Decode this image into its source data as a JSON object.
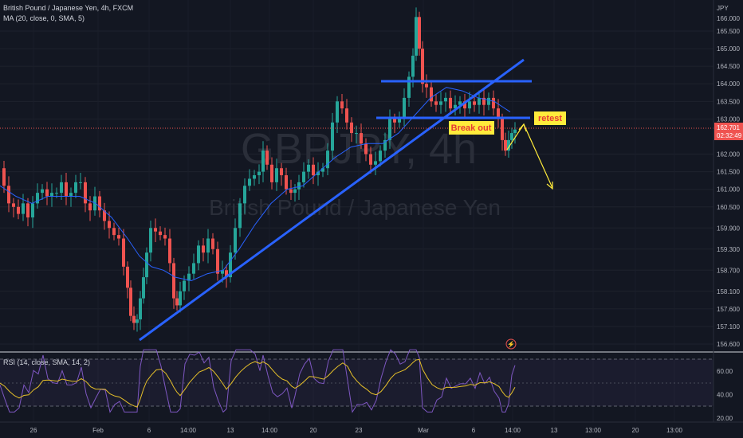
{
  "chart_data": {
    "type": "candlestick",
    "title": "British Pound / Japanese Yen, 4h, FXCM",
    "indicator_ma": "MA (20, close, 0, SMA, 5)",
    "indicator_rsi": "RSI (14, close, SMA, 14, 2)",
    "currency": "JPY",
    "watermark_symbol": "GBPJPY, 4h",
    "watermark_name": "British Pound / Japanese Yen",
    "price_ticks": [
      "165.500",
      "165.000",
      "164.500",
      "164.000",
      "163.500",
      "163.000",
      "162.000",
      "161.500",
      "161.000",
      "160.500",
      "159.900",
      "159.300",
      "158.700",
      "158.100",
      "157.600",
      "157.100",
      "156.600"
    ],
    "rsi_ticks": [
      "60.00",
      "40.00",
      "20.00"
    ],
    "time_ticks": [
      "26",
      "Feb",
      "6",
      "14:00",
      "13",
      "14:00",
      "20",
      "23",
      "Mar",
      "6",
      "14:00",
      "13",
      "13:00",
      "20",
      "13:00"
    ],
    "ylim": [
      156.5,
      166.1
    ],
    "last_price": "162.701",
    "countdown": "02:32:49",
    "top_label": "166.000",
    "colors": {
      "up": "#26a69a",
      "down": "#ef5350",
      "ma": "#2962ff",
      "trend": "#2962ff",
      "rsi": "#7e57c2",
      "rsi_ma": "#e6c029",
      "arrow": "#ffeb3b"
    },
    "close_path": [
      [
        0,
        161.6
      ],
      [
        6,
        161.1
      ],
      [
        12,
        160.6
      ],
      [
        18,
        160.5
      ],
      [
        24,
        160.3
      ],
      [
        30,
        160.6
      ],
      [
        36,
        160.2
      ],
      [
        42,
        160.6
      ],
      [
        48,
        160.9
      ],
      [
        54,
        161.0
      ],
      [
        60,
        160.8
      ],
      [
        66,
        160.9
      ],
      [
        72,
        160.9
      ],
      [
        78,
        161.2
      ],
      [
        84,
        160.8
      ],
      [
        90,
        160.9
      ],
      [
        96,
        161.2
      ],
      [
        102,
        161.2
      ],
      [
        108,
        160.6
      ],
      [
        114,
        160.4
      ],
      [
        120,
        160.8
      ],
      [
        126,
        160.4
      ],
      [
        132,
        160.1
      ],
      [
        138,
        159.9
      ],
      [
        144,
        159.7
      ],
      [
        150,
        159.6
      ],
      [
        156,
        158.8
      ],
      [
        160,
        158.2
      ],
      [
        164,
        157.4
      ],
      [
        168,
        157.2
      ],
      [
        172,
        157.3
      ],
      [
        176,
        157.9
      ],
      [
        180,
        158.5
      ],
      [
        184,
        159.2
      ],
      [
        190,
        159.9
      ],
      [
        196,
        159.8
      ],
      [
        202,
        159.7
      ],
      [
        208,
        159.6
      ],
      [
        214,
        158.9
      ],
      [
        218,
        157.9
      ],
      [
        222,
        157.7
      ],
      [
        226,
        158.1
      ],
      [
        232,
        158.4
      ],
      [
        238,
        158.6
      ],
      [
        244,
        158.9
      ],
      [
        250,
        159.4
      ],
      [
        256,
        159.2
      ],
      [
        262,
        159.6
      ],
      [
        268,
        159.3
      ],
      [
        274,
        158.6
      ],
      [
        280,
        158.7
      ],
      [
        284,
        158.5
      ],
      [
        290,
        159.2
      ],
      [
        296,
        159.9
      ],
      [
        302,
        160.6
      ],
      [
        308,
        161.1
      ],
      [
        314,
        161.3
      ],
      [
        320,
        161.4
      ],
      [
        326,
        161.5
      ],
      [
        330,
        162.1
      ],
      [
        336,
        161.7
      ],
      [
        342,
        161.2
      ],
      [
        348,
        161.6
      ],
      [
        354,
        161.4
      ],
      [
        360,
        161.0
      ],
      [
        366,
        160.9
      ],
      [
        370,
        161.0
      ],
      [
        376,
        161.2
      ],
      [
        382,
        161.5
      ],
      [
        388,
        161.7
      ],
      [
        394,
        161.4
      ],
      [
        400,
        161.5
      ],
      [
        406,
        161.6
      ],
      [
        412,
        162.1
      ],
      [
        418,
        162.9
      ],
      [
        424,
        163.5
      ],
      [
        430,
        163.3
      ],
      [
        436,
        162.9
      ],
      [
        442,
        162.6
      ],
      [
        448,
        162.6
      ],
      [
        454,
        162.3
      ],
      [
        460,
        162.0
      ],
      [
        466,
        161.7
      ],
      [
        472,
        161.8
      ],
      [
        478,
        162.1
      ],
      [
        484,
        162.4
      ],
      [
        490,
        163.0
      ],
      [
        496,
        162.9
      ],
      [
        502,
        163.0
      ],
      [
        508,
        163.6
      ],
      [
        514,
        164.2
      ],
      [
        518,
        164.8
      ],
      [
        522,
        165.9
      ],
      [
        526,
        165.0
      ],
      [
        530,
        164.0
      ],
      [
        536,
        163.9
      ],
      [
        542,
        163.5
      ],
      [
        548,
        163.4
      ],
      [
        554,
        163.5
      ],
      [
        560,
        163.6
      ],
      [
        566,
        163.3
      ],
      [
        572,
        163.4
      ],
      [
        578,
        163.5
      ],
      [
        584,
        163.3
      ],
      [
        590,
        163.5
      ],
      [
        596,
        163.4
      ],
      [
        602,
        163.6
      ],
      [
        608,
        163.4
      ],
      [
        614,
        163.6
      ],
      [
        620,
        163.3
      ],
      [
        626,
        163.0
      ],
      [
        630,
        162.4
      ],
      [
        634,
        162.1
      ],
      [
        638,
        162.4
      ],
      [
        642,
        162.6
      ],
      [
        646,
        162.7
      ]
    ],
    "ma_path": [
      [
        0,
        161.1
      ],
      [
        20,
        160.8
      ],
      [
        40,
        160.6
      ],
      [
        60,
        160.8
      ],
      [
        80,
        160.8
      ],
      [
        100,
        160.8
      ],
      [
        120,
        160.6
      ],
      [
        140,
        160.2
      ],
      [
        160,
        159.6
      ],
      [
        175,
        159.1
      ],
      [
        190,
        158.8
      ],
      [
        205,
        158.7
      ],
      [
        220,
        158.5
      ],
      [
        240,
        158.4
      ],
      [
        260,
        158.6
      ],
      [
        280,
        158.7
      ],
      [
        300,
        159.3
      ],
      [
        320,
        160.0
      ],
      [
        340,
        160.6
      ],
      [
        360,
        161.0
      ],
      [
        380,
        161.1
      ],
      [
        400,
        161.5
      ],
      [
        420,
        161.9
      ],
      [
        440,
        162.2
      ],
      [
        460,
        162.3
      ],
      [
        480,
        162.3
      ],
      [
        500,
        162.6
      ],
      [
        520,
        163.1
      ],
      [
        540,
        163.6
      ],
      [
        560,
        163.9
      ],
      [
        580,
        163.8
      ],
      [
        600,
        163.6
      ],
      [
        620,
        163.5
      ],
      [
        640,
        163.2
      ]
    ],
    "annotations": {
      "break_out": "Break out",
      "retest": "retest"
    }
  }
}
